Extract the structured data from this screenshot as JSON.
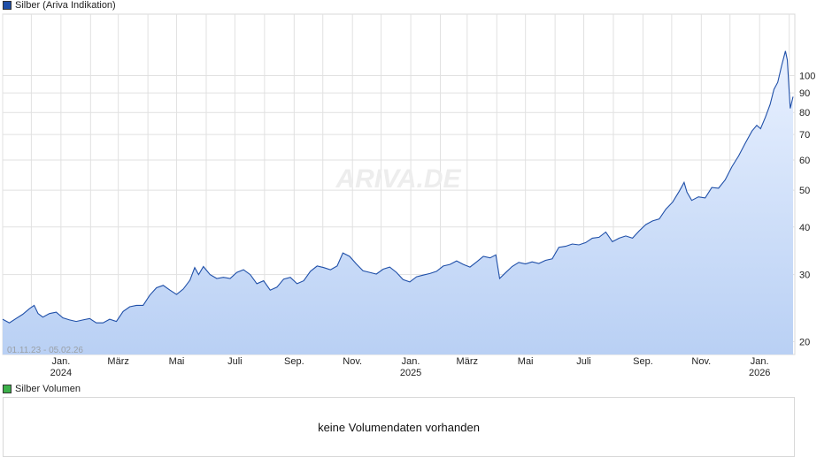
{
  "legend": {
    "main_label": "Silber (Ariva Indikation)",
    "main_color": "#1f4fa8",
    "volume_label": "Silber Volumen",
    "volume_color": "#3cb04a"
  },
  "watermark": "ARIVA.DE",
  "date_range": "01.11.23 - 05.02.26",
  "volume_panel": {
    "message": "keine Volumendaten vorhanden"
  },
  "chart_data": {
    "type": "area",
    "y_scale": "log",
    "ylim": [
      18.5,
      145
    ],
    "y_ticks": [
      20,
      30,
      40,
      50,
      60,
      70,
      80,
      90,
      100
    ],
    "x_ticks": [
      {
        "date": "2024-01-01",
        "label": "Jan.",
        "year": "2024"
      },
      {
        "date": "2024-03-01",
        "label": "März",
        "year": ""
      },
      {
        "date": "2024-05-01",
        "label": "Mai",
        "year": ""
      },
      {
        "date": "2024-07-01",
        "label": "Juli",
        "year": ""
      },
      {
        "date": "2024-09-01",
        "label": "Sep.",
        "year": ""
      },
      {
        "date": "2024-11-01",
        "label": "Nov.",
        "year": ""
      },
      {
        "date": "2025-01-01",
        "label": "Jan.",
        "year": "2025"
      },
      {
        "date": "2025-03-01",
        "label": "März",
        "year": ""
      },
      {
        "date": "2025-05-01",
        "label": "Mai",
        "year": ""
      },
      {
        "date": "2025-07-01",
        "label": "Juli",
        "year": ""
      },
      {
        "date": "2025-09-01",
        "label": "Sep.",
        "year": ""
      },
      {
        "date": "2025-11-01",
        "label": "Nov.",
        "year": ""
      },
      {
        "date": "2026-01-01",
        "label": "Jan.",
        "year": "2026"
      }
    ],
    "x_start": "2023-11-01",
    "x_end": "2026-02-05",
    "series": [
      {
        "points": [
          [
            "2023-11-01",
            22.9
          ],
          [
            "2023-11-08",
            22.4
          ],
          [
            "2023-11-15",
            23.0
          ],
          [
            "2023-11-22",
            23.6
          ],
          [
            "2023-11-29",
            24.4
          ],
          [
            "2023-12-04",
            24.9
          ],
          [
            "2023-12-08",
            23.7
          ],
          [
            "2023-12-13",
            23.2
          ],
          [
            "2023-12-20",
            23.7
          ],
          [
            "2023-12-27",
            23.9
          ],
          [
            "2024-01-03",
            23.1
          ],
          [
            "2024-01-10",
            22.8
          ],
          [
            "2024-01-17",
            22.6
          ],
          [
            "2024-01-24",
            22.8
          ],
          [
            "2024-01-31",
            23.0
          ],
          [
            "2024-02-07",
            22.4
          ],
          [
            "2024-02-14",
            22.4
          ],
          [
            "2024-02-21",
            22.9
          ],
          [
            "2024-02-28",
            22.6
          ],
          [
            "2024-03-06",
            24.0
          ],
          [
            "2024-03-13",
            24.7
          ],
          [
            "2024-03-20",
            24.9
          ],
          [
            "2024-03-27",
            24.9
          ],
          [
            "2024-04-03",
            26.5
          ],
          [
            "2024-04-10",
            27.7
          ],
          [
            "2024-04-17",
            28.1
          ],
          [
            "2024-04-24",
            27.3
          ],
          [
            "2024-05-01",
            26.6
          ],
          [
            "2024-05-08",
            27.5
          ],
          [
            "2024-05-15",
            29.0
          ],
          [
            "2024-05-20",
            31.3
          ],
          [
            "2024-05-24",
            30.0
          ],
          [
            "2024-05-29",
            31.5
          ],
          [
            "2024-06-05",
            30.0
          ],
          [
            "2024-06-12",
            29.3
          ],
          [
            "2024-06-19",
            29.5
          ],
          [
            "2024-06-26",
            29.3
          ],
          [
            "2024-07-03",
            30.4
          ],
          [
            "2024-07-10",
            30.9
          ],
          [
            "2024-07-17",
            30.0
          ],
          [
            "2024-07-24",
            28.4
          ],
          [
            "2024-07-31",
            28.9
          ],
          [
            "2024-08-07",
            27.3
          ],
          [
            "2024-08-14",
            27.8
          ],
          [
            "2024-08-21",
            29.2
          ],
          [
            "2024-08-28",
            29.5
          ],
          [
            "2024-09-04",
            28.4
          ],
          [
            "2024-09-11",
            28.9
          ],
          [
            "2024-09-18",
            30.6
          ],
          [
            "2024-09-25",
            31.6
          ],
          [
            "2024-10-02",
            31.3
          ],
          [
            "2024-10-09",
            30.9
          ],
          [
            "2024-10-16",
            31.6
          ],
          [
            "2024-10-22",
            34.2
          ],
          [
            "2024-10-29",
            33.5
          ],
          [
            "2024-11-05",
            32.0
          ],
          [
            "2024-11-12",
            30.7
          ],
          [
            "2024-11-19",
            30.4
          ],
          [
            "2024-11-26",
            30.1
          ],
          [
            "2024-12-03",
            31.0
          ],
          [
            "2024-12-10",
            31.4
          ],
          [
            "2024-12-17",
            30.4
          ],
          [
            "2024-12-24",
            29.1
          ],
          [
            "2024-12-31",
            28.7
          ],
          [
            "2025-01-07",
            29.6
          ],
          [
            "2025-01-14",
            29.9
          ],
          [
            "2025-01-21",
            30.2
          ],
          [
            "2025-01-28",
            30.6
          ],
          [
            "2025-02-04",
            31.6
          ],
          [
            "2025-02-11",
            31.9
          ],
          [
            "2025-02-18",
            32.6
          ],
          [
            "2025-02-25",
            31.9
          ],
          [
            "2025-03-04",
            31.4
          ],
          [
            "2025-03-11",
            32.4
          ],
          [
            "2025-03-18",
            33.5
          ],
          [
            "2025-03-25",
            33.2
          ],
          [
            "2025-03-31",
            33.8
          ],
          [
            "2025-04-04",
            29.3
          ],
          [
            "2025-04-10",
            30.3
          ],
          [
            "2025-04-17",
            31.5
          ],
          [
            "2025-04-24",
            32.3
          ],
          [
            "2025-05-01",
            32.0
          ],
          [
            "2025-05-08",
            32.4
          ],
          [
            "2025-05-15",
            32.1
          ],
          [
            "2025-05-22",
            32.7
          ],
          [
            "2025-05-29",
            33.0
          ],
          [
            "2025-06-05",
            35.4
          ],
          [
            "2025-06-12",
            35.6
          ],
          [
            "2025-06-19",
            36.1
          ],
          [
            "2025-06-26",
            35.9
          ],
          [
            "2025-07-03",
            36.4
          ],
          [
            "2025-07-10",
            37.4
          ],
          [
            "2025-07-17",
            37.6
          ],
          [
            "2025-07-24",
            38.8
          ],
          [
            "2025-07-31",
            36.6
          ],
          [
            "2025-08-07",
            37.4
          ],
          [
            "2025-08-14",
            37.9
          ],
          [
            "2025-08-21",
            37.4
          ],
          [
            "2025-08-28",
            39.1
          ],
          [
            "2025-09-04",
            40.6
          ],
          [
            "2025-09-11",
            41.5
          ],
          [
            "2025-09-18",
            42.0
          ],
          [
            "2025-09-25",
            44.6
          ],
          [
            "2025-10-02",
            46.5
          ],
          [
            "2025-10-09",
            49.7
          ],
          [
            "2025-10-14",
            52.4
          ],
          [
            "2025-10-17",
            49.4
          ],
          [
            "2025-10-22",
            47.0
          ],
          [
            "2025-10-29",
            48.0
          ],
          [
            "2025-11-05",
            47.7
          ],
          [
            "2025-11-12",
            50.8
          ],
          [
            "2025-11-19",
            50.6
          ],
          [
            "2025-11-26",
            53.2
          ],
          [
            "2025-12-03",
            57.6
          ],
          [
            "2025-12-10",
            61.5
          ],
          [
            "2025-12-17",
            66.4
          ],
          [
            "2025-12-24",
            71.5
          ],
          [
            "2025-12-29",
            74.0
          ],
          [
            "2026-01-02",
            72.5
          ],
          [
            "2026-01-07",
            77.7
          ],
          [
            "2026-01-12",
            84.0
          ],
          [
            "2026-01-16",
            92.0
          ],
          [
            "2026-01-20",
            96.0
          ],
          [
            "2026-01-24",
            106.0
          ],
          [
            "2026-01-28",
            116.0
          ],
          [
            "2026-01-30",
            110.0
          ],
          [
            "2026-02-02",
            82.0
          ],
          [
            "2026-02-05",
            88.0
          ]
        ]
      }
    ]
  }
}
